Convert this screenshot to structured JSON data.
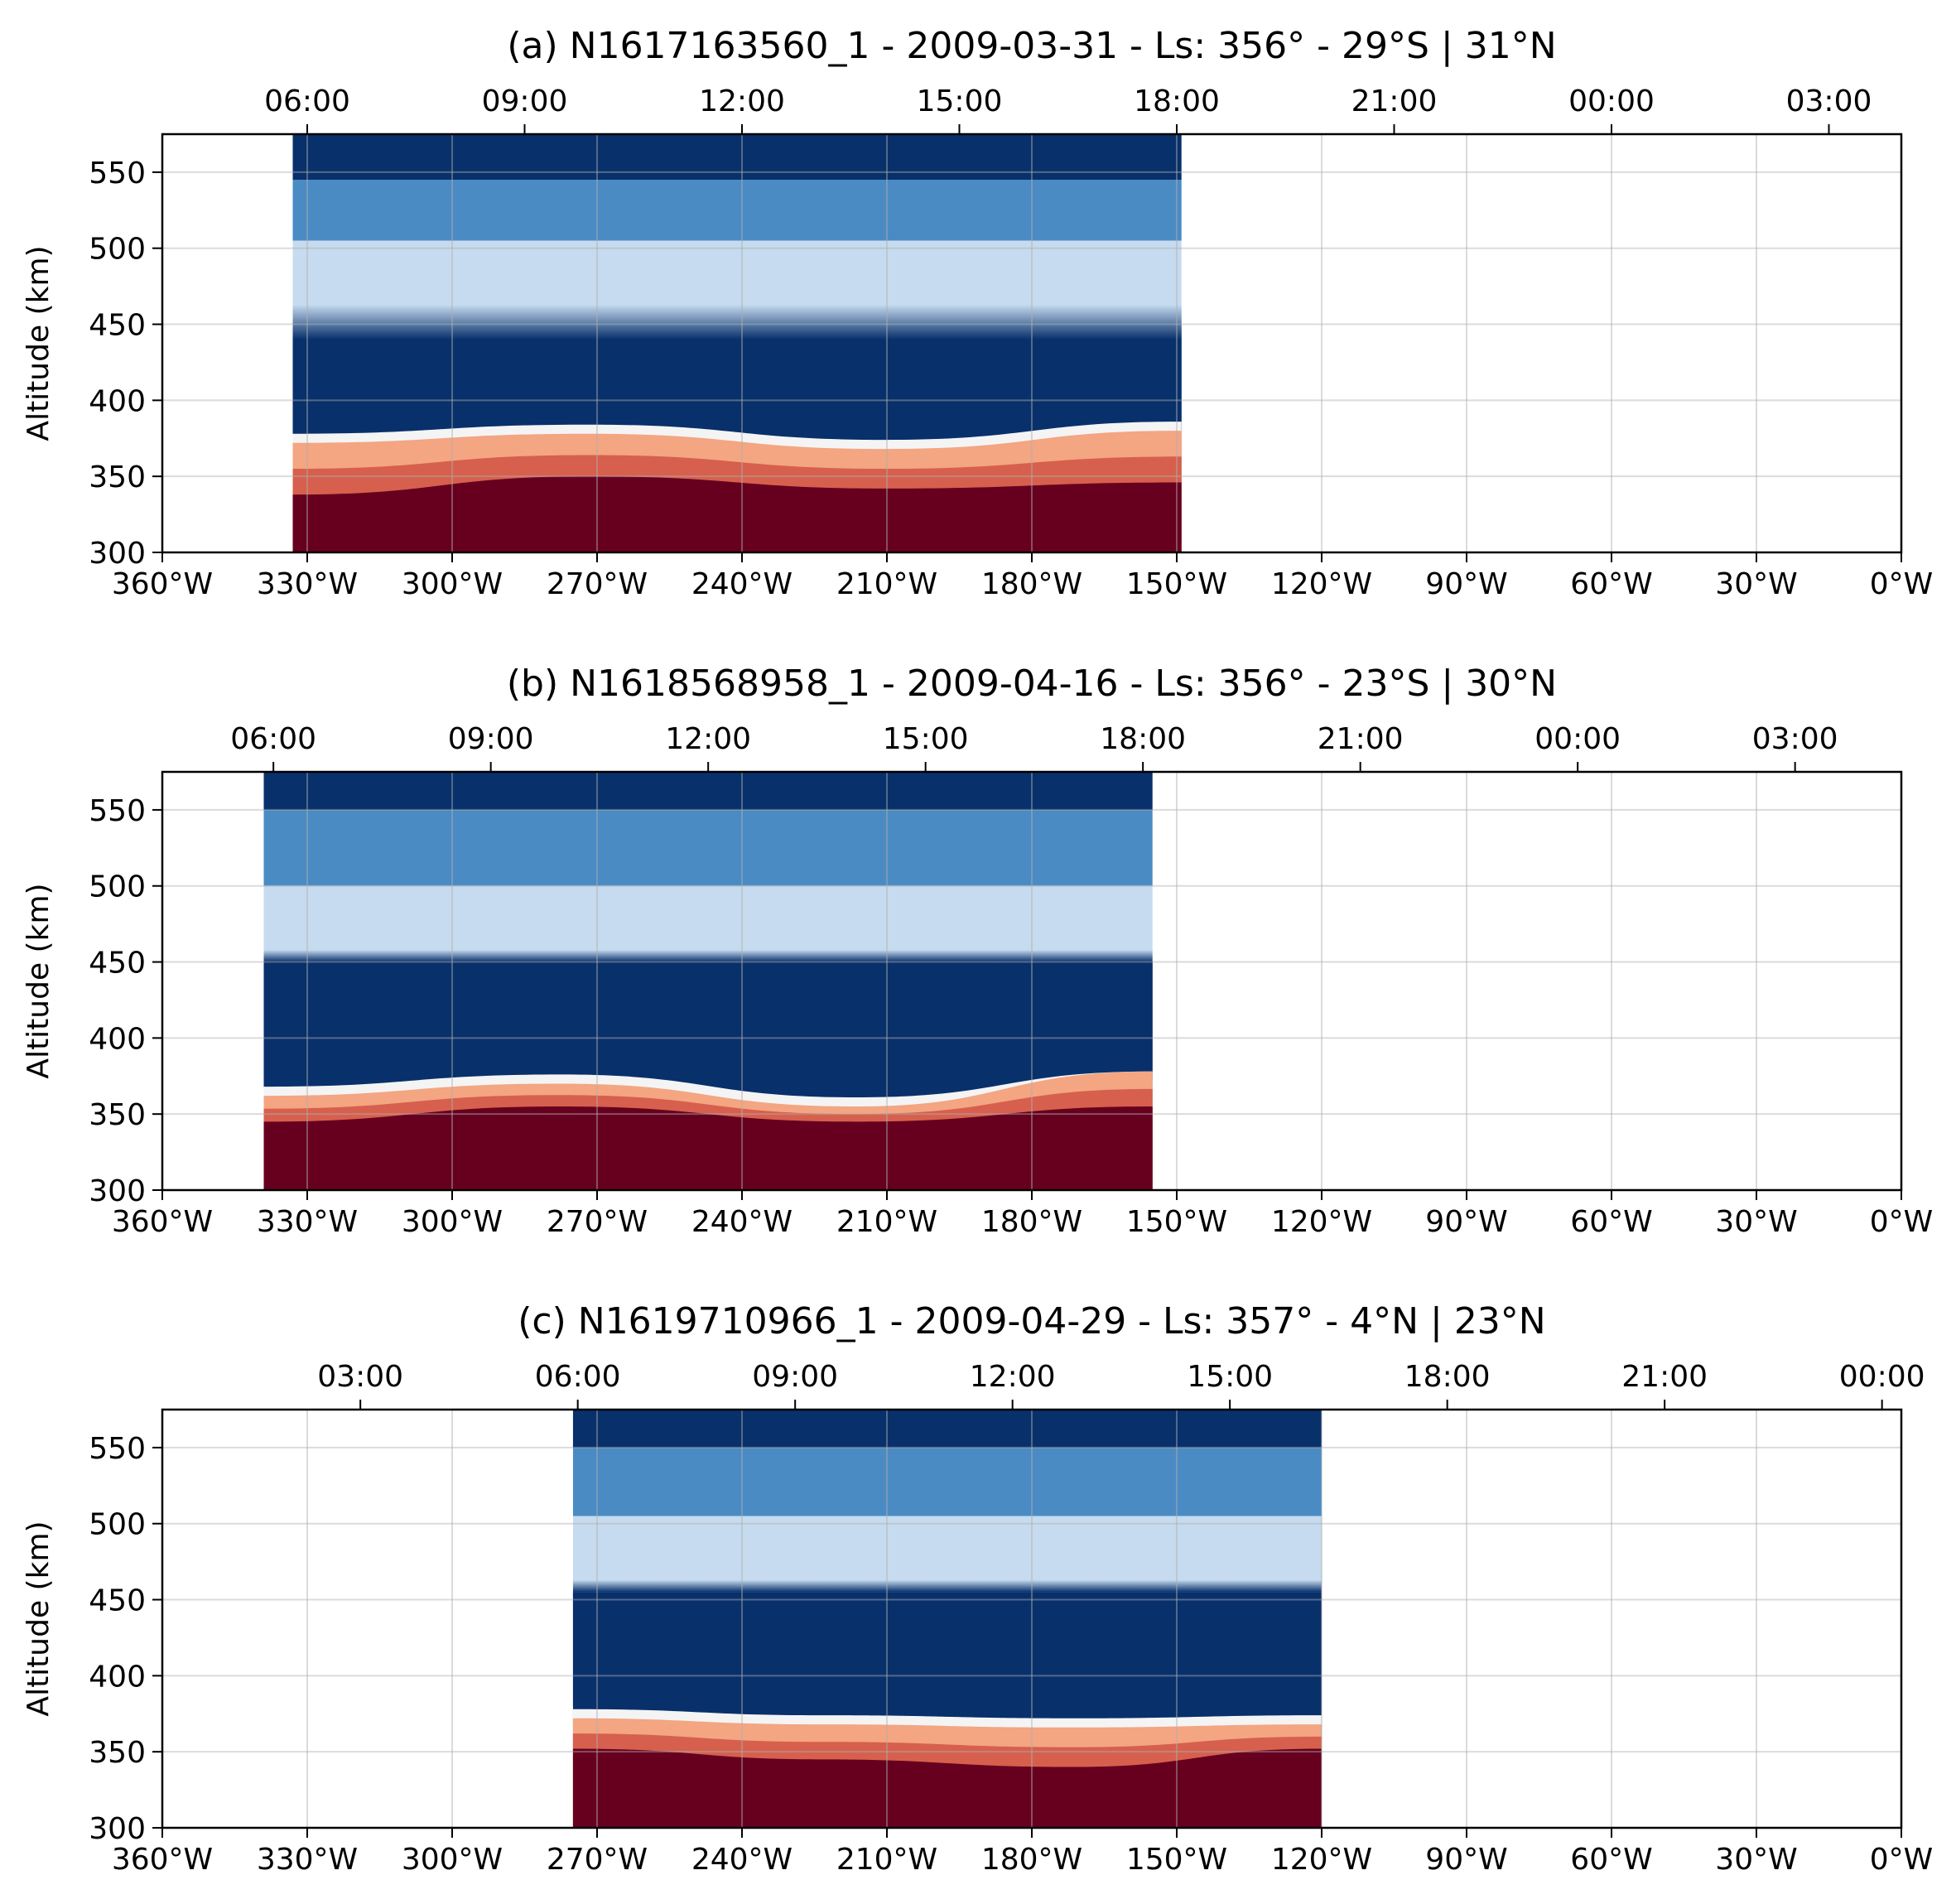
{
  "chart_data": [
    {
      "type": "heatmap",
      "title": "(a) N1617163560_1 - 2009-03-31 - Ls: 356° - 29°S | 31°N",
      "ylabel": "Altitude (km)",
      "xlabel": "",
      "x_unit": "°W",
      "xlim": [
        360,
        0
      ],
      "ylim": [
        300,
        575
      ],
      "x_ticks": [
        "360°W",
        "330°W",
        "300°W",
        "270°W",
        "240°W",
        "210°W",
        "180°W",
        "150°W",
        "120°W",
        "90°W",
        "60°W",
        "30°W",
        "0°W"
      ],
      "x_tick_values": [
        360,
        330,
        300,
        270,
        240,
        210,
        180,
        150,
        120,
        90,
        60,
        30,
        0
      ],
      "y_ticks": [
        "300",
        "350",
        "400",
        "450",
        "500",
        "550"
      ],
      "y_tick_values": [
        300,
        350,
        400,
        450,
        500,
        550
      ],
      "top_axis_ticks": [
        "06:00",
        "09:00",
        "12:00",
        "15:00",
        "18:00",
        "21:00",
        "00:00",
        "03:00"
      ],
      "top_axis_tick_positions": [
        330,
        285,
        240,
        195,
        150,
        105,
        60,
        15
      ],
      "data_extent_lon": [
        333,
        149
      ],
      "data_extent_alt": [
        300,
        575
      ],
      "grid": true,
      "colormap": "RdBu_r",
      "bands": [
        {
          "alt_bottom": 300,
          "alt_top": [
            338,
            350,
            342,
            346
          ],
          "color": "#67001f",
          "label": "red-base"
        },
        {
          "alt_bottom": [
            338,
            350,
            342,
            346
          ],
          "alt_top": [
            372,
            378,
            368,
            380
          ],
          "color": "#d6604d",
          "label": "red-to-white-transition"
        },
        {
          "alt_bottom": [
            372,
            378,
            368,
            380
          ],
          "alt_top": 380,
          "color": "#f7f7f7",
          "label": "white-edge"
        },
        {
          "alt_bottom": 380,
          "alt_top": 440,
          "color": "#08306b",
          "label": "dark-blue-lower"
        },
        {
          "alt_bottom": 455,
          "alt_top": 505,
          "color": "#c6dbef",
          "label": "light-blue-band"
        },
        {
          "alt_bottom": 505,
          "alt_top": 545,
          "color": "#4a8bc4",
          "label": "mid-blue"
        },
        {
          "alt_bottom": 545,
          "alt_top": 575,
          "color": "#08306b",
          "label": "dark-blue-top"
        }
      ]
    },
    {
      "type": "heatmap",
      "title": "(b) N1618568958_1 - 2009-04-16 - Ls: 356° - 23°S | 30°N",
      "ylabel": "Altitude (km)",
      "xlabel": "",
      "x_unit": "°W",
      "xlim": [
        360,
        0
      ],
      "ylim": [
        300,
        575
      ],
      "x_ticks": [
        "360°W",
        "330°W",
        "300°W",
        "270°W",
        "240°W",
        "210°W",
        "180°W",
        "150°W",
        "120°W",
        "90°W",
        "60°W",
        "30°W",
        "0°W"
      ],
      "x_tick_values": [
        360,
        330,
        300,
        270,
        240,
        210,
        180,
        150,
        120,
        90,
        60,
        30,
        0
      ],
      "y_ticks": [
        "300",
        "350",
        "400",
        "450",
        "500",
        "550"
      ],
      "y_tick_values": [
        300,
        350,
        400,
        450,
        500,
        550
      ],
      "top_axis_ticks": [
        "06:00",
        "09:00",
        "12:00",
        "15:00",
        "18:00",
        "21:00",
        "00:00",
        "03:00"
      ],
      "top_axis_tick_positions": [
        337,
        292,
        247,
        202,
        157,
        112,
        67,
        22
      ],
      "data_extent_lon": [
        339,
        155
      ],
      "data_extent_alt": [
        300,
        575
      ],
      "grid": true,
      "colormap": "RdBu_r",
      "bands": [
        {
          "alt_bottom": 300,
          "alt_top": [
            345,
            355,
            345,
            355
          ],
          "color": "#67001f",
          "label": "red-base"
        },
        {
          "alt_bottom": [
            345,
            355,
            345,
            355
          ],
          "alt_top": [
            362,
            370,
            355,
            378
          ],
          "color": "#d6604d",
          "label": "red-to-white-transition"
        },
        {
          "alt_bottom": [
            362,
            370,
            355,
            378
          ],
          "alt_top": 372,
          "color": "#f7f7f7",
          "label": "white-edge"
        },
        {
          "alt_bottom": 372,
          "alt_top": 450,
          "color": "#08306b",
          "label": "dark-blue-lower"
        },
        {
          "alt_bottom": 450,
          "alt_top": 500,
          "color": "#c6dbef",
          "label": "light-blue-band"
        },
        {
          "alt_bottom": 500,
          "alt_top": 550,
          "color": "#4a8bc4",
          "label": "mid-blue"
        },
        {
          "alt_bottom": 550,
          "alt_top": 575,
          "color": "#08306b",
          "label": "dark-blue-top"
        }
      ]
    },
    {
      "type": "heatmap",
      "title": "(c) N1619710966_1 - 2009-04-29 - Ls: 357° - 4°N | 23°N",
      "ylabel": "Altitude (km)",
      "xlabel": "",
      "x_unit": "°W",
      "xlim": [
        360,
        0
      ],
      "ylim": [
        300,
        575
      ],
      "x_ticks": [
        "360°W",
        "330°W",
        "300°W",
        "270°W",
        "240°W",
        "210°W",
        "180°W",
        "150°W",
        "120°W",
        "90°W",
        "60°W",
        "30°W",
        "0°W"
      ],
      "x_tick_values": [
        360,
        330,
        300,
        270,
        240,
        210,
        180,
        150,
        120,
        90,
        60,
        30,
        0
      ],
      "y_ticks": [
        "300",
        "350",
        "400",
        "450",
        "500",
        "550"
      ],
      "y_tick_values": [
        300,
        350,
        400,
        450,
        500,
        550
      ],
      "top_axis_ticks": [
        "03:00",
        "06:00",
        "09:00",
        "12:00",
        "15:00",
        "18:00",
        "21:00",
        "00:00"
      ],
      "top_axis_tick_positions": [
        319,
        274,
        229,
        184,
        139,
        94,
        49,
        4
      ],
      "data_extent_lon": [
        275,
        120
      ],
      "data_extent_alt": [
        300,
        575
      ],
      "grid": true,
      "colormap": "RdBu_r",
      "bands": [
        {
          "alt_bottom": 300,
          "alt_top": [
            352,
            345,
            340,
            352
          ],
          "color": "#67001f",
          "label": "red-base"
        },
        {
          "alt_bottom": [
            352,
            345,
            340,
            352
          ],
          "alt_top": [
            372,
            368,
            366,
            368
          ],
          "color": "#d6604d",
          "label": "red-to-white-transition"
        },
        {
          "alt_bottom": [
            372,
            368,
            366,
            368
          ],
          "alt_top": 380,
          "color": "#f7f7f7",
          "label": "white-edge"
        },
        {
          "alt_bottom": 380,
          "alt_top": 455,
          "color": "#08306b",
          "label": "dark-blue-lower"
        },
        {
          "alt_bottom": 455,
          "alt_top": 505,
          "color": "#c6dbef",
          "label": "light-blue-band"
        },
        {
          "alt_bottom": 505,
          "alt_top": 550,
          "color": "#4a8bc4",
          "label": "mid-blue"
        },
        {
          "alt_bottom": 550,
          "alt_top": 575,
          "color": "#08306b",
          "label": "dark-blue-top"
        }
      ]
    }
  ]
}
